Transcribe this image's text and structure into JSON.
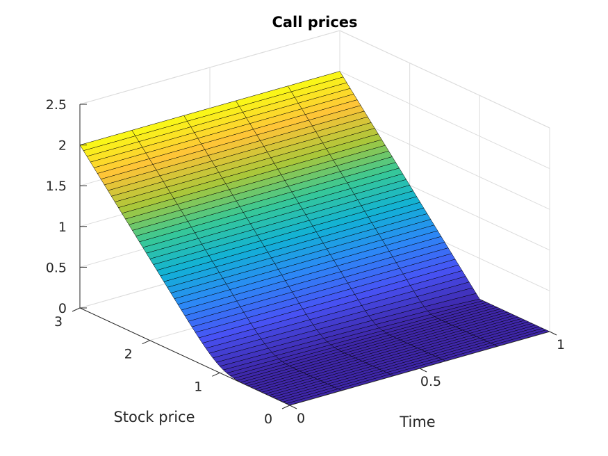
{
  "chart_data": {
    "type": "surface",
    "title": "Call prices",
    "xlabel": "Time",
    "ylabel": "Stock price",
    "zlabel": "",
    "colormap": "parula",
    "grid": true,
    "x_ticks": [
      "0",
      "0.5",
      "1"
    ],
    "y_ticks": [
      "0",
      "1",
      "2",
      "3"
    ],
    "z_ticks": [
      "0",
      "0.5",
      "1",
      "1.5",
      "2",
      "2.5"
    ],
    "xlim": [
      0,
      1
    ],
    "ylim": [
      0,
      3
    ],
    "zlim": [
      0,
      2.5
    ],
    "strike": 1,
    "maturity": 1,
    "time_grid": [
      0,
      0.2,
      0.4,
      0.6,
      0.8,
      1.0
    ],
    "stock_grid_count": 61,
    "edge_color": "#000000"
  }
}
